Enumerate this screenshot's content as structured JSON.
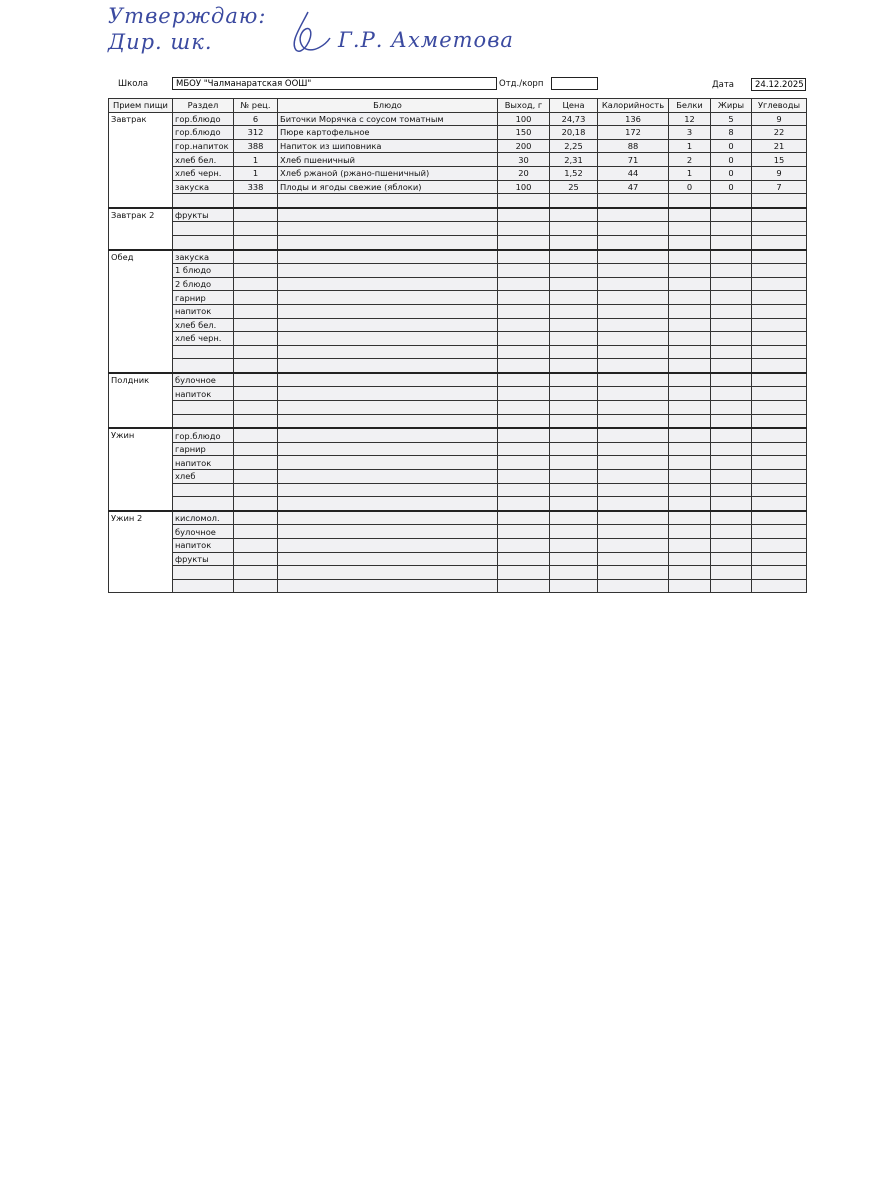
{
  "approval": {
    "title": "Утверждаю:",
    "position": "Дир. шк.",
    "signer": "Г.Р. Ахметова"
  },
  "header": {
    "school_label": "Школа",
    "school": "МБОУ \"Чалманаратская ООШ\"",
    "dept_label": "Отд./корп",
    "date_label": "Дата",
    "date": "24.12.2025"
  },
  "table": {
    "columns": [
      "Прием пищи",
      "Раздел",
      "№ рец.",
      "Блюдо",
      "Выход, г",
      "Цена",
      "Калорийность",
      "Белки",
      "Жиры",
      "Углеводы"
    ],
    "sections": [
      {
        "meal": "Завтрак",
        "rows": [
          {
            "section": "гор.блюдо",
            "rec": "6",
            "dish": "Биточки Морячка с соусом томатным",
            "output": "100",
            "price": "24,73",
            "kcal": "136",
            "protein": "12",
            "fat": "5",
            "carbs": "9"
          },
          {
            "section": "гор.блюдо",
            "rec": "312",
            "dish": "Пюре картофельное",
            "output": "150",
            "price": "20,18",
            "kcal": "172",
            "protein": "3",
            "fat": "8",
            "carbs": "22"
          },
          {
            "section": "гор.напиток",
            "rec": "388",
            "dish": "Напиток из шиповника",
            "output": "200",
            "price": "2,25",
            "kcal": "88",
            "protein": "1",
            "fat": "0",
            "carbs": "21"
          },
          {
            "section": "хлеб бел.",
            "rec": "1",
            "dish": "Хлеб пшеничный",
            "output": "30",
            "price": "2,31",
            "kcal": "71",
            "protein": "2",
            "fat": "0",
            "carbs": "15"
          },
          {
            "section": "хлеб черн.",
            "rec": "1",
            "dish": "Хлеб ржаной (ржано-пшеничный)",
            "output": "20",
            "price": "1,52",
            "kcal": "44",
            "protein": "1",
            "fat": "0",
            "carbs": "9"
          },
          {
            "section": "закуска",
            "rec": "338",
            "dish": "Плоды и ягоды свежие (яблоки)",
            "output": "100",
            "price": "25",
            "kcal": "47",
            "protein": "0",
            "fat": "0",
            "carbs": "7"
          },
          {}
        ]
      },
      {
        "meal": "Завтрак 2",
        "rows": [
          {
            "section": "фрукты"
          },
          {},
          {}
        ]
      },
      {
        "meal": "Обед",
        "rows": [
          {
            "section": "закуска"
          },
          {
            "section": "1 блюдо"
          },
          {
            "section": "2 блюдо"
          },
          {
            "section": "гарнир"
          },
          {
            "section": "напиток"
          },
          {
            "section": "хлеб бел."
          },
          {
            "section": "хлеб черн."
          },
          {},
          {}
        ]
      },
      {
        "meal": "Полдник",
        "rows": [
          {
            "section": "булочное"
          },
          {
            "section": "напиток"
          },
          {},
          {}
        ]
      },
      {
        "meal": "Ужин",
        "rows": [
          {
            "section": "гор.блюдо"
          },
          {
            "section": "гарнир"
          },
          {
            "section": "напиток"
          },
          {
            "section": "хлеб"
          },
          {},
          {}
        ]
      },
      {
        "meal": "Ужин 2",
        "rows": [
          {
            "section": "кисломол."
          },
          {
            "section": "булочное"
          },
          {
            "section": "напиток"
          },
          {
            "section": "фрукты"
          },
          {},
          {}
        ]
      }
    ]
  }
}
